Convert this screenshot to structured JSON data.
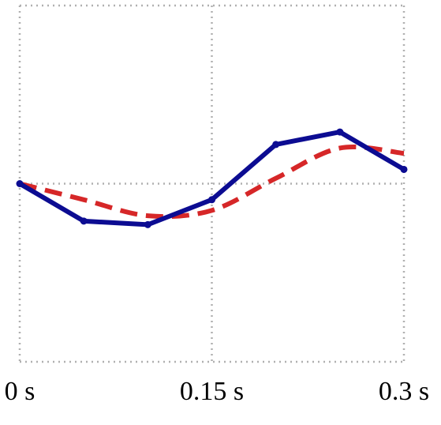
{
  "chart_data": {
    "type": "line",
    "x": [
      0,
      0.05,
      0.1,
      0.15,
      0.2,
      0.25,
      0.3
    ],
    "series": [
      {
        "color": "#0c0c92",
        "dashed": false,
        "markers": true,
        "smooth": false,
        "values": [
          0,
          -0.21,
          -0.23,
          -0.09,
          0.22,
          0.29,
          0.08
        ]
      },
      {
        "color": "#d62728",
        "dashed": true,
        "markers": false,
        "smooth": true,
        "values": [
          0,
          -0.09,
          -0.18,
          -0.15,
          0.03,
          0.2,
          0.17
        ]
      }
    ],
    "xlim": [
      0,
      0.3
    ],
    "xticks": [
      {
        "value": 0,
        "label": "0 s"
      },
      {
        "value": 0.15,
        "label": "0.15 s"
      },
      {
        "value": 0.3,
        "label": "0.3 s"
      }
    ],
    "ylim": [
      -1,
      1
    ],
    "yticks": [
      -1,
      0,
      1
    ],
    "grid": true
  }
}
